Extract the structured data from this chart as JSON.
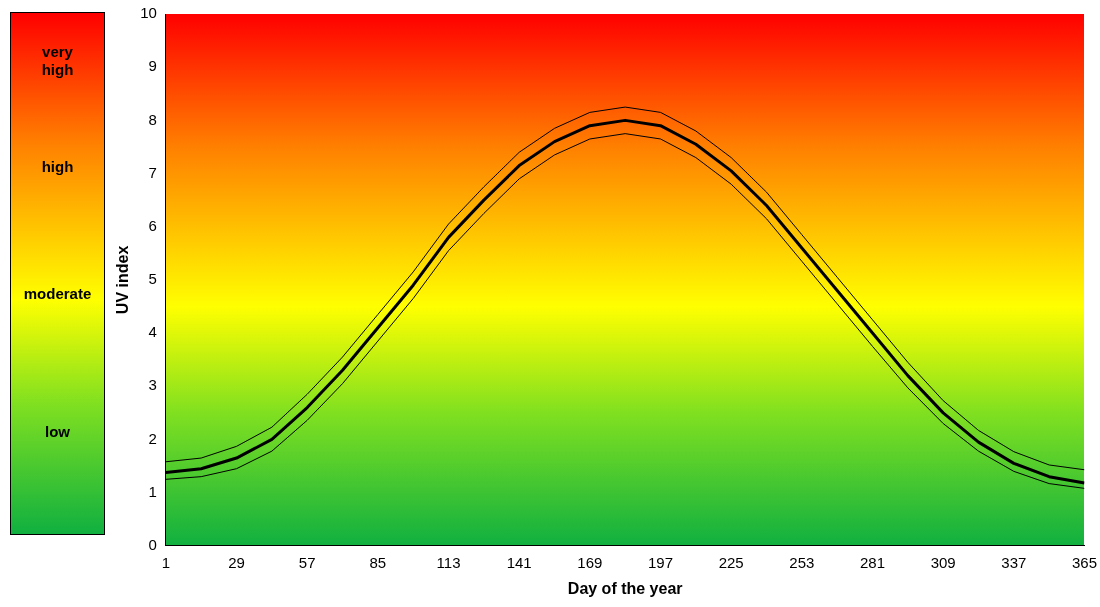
{
  "chart_data": {
    "type": "line",
    "xlabel": "Day of the year",
    "ylabel": "UV index",
    "annotations": [
      "very\nhigh",
      "high",
      "moderate",
      "low"
    ],
    "x": [
      1,
      15,
      29,
      43,
      57,
      71,
      85,
      99,
      113,
      127,
      141,
      155,
      169,
      183,
      197,
      211,
      225,
      239,
      253,
      267,
      281,
      295,
      309,
      323,
      337,
      351,
      365
    ],
    "xlim": [
      1,
      365
    ],
    "xticks": [
      1,
      29,
      57,
      85,
      113,
      141,
      169,
      197,
      225,
      253,
      281,
      309,
      337,
      365
    ],
    "ylim": [
      0,
      10
    ],
    "yticks": [
      0,
      1,
      2,
      3,
      4,
      5,
      6,
      7,
      8,
      9,
      10
    ],
    "grid": false,
    "legend": false,
    "marker": "none",
    "line_style": "solid",
    "series": [
      {
        "color": "#000000",
        "values": [
          1.38,
          1.45,
          1.65,
          2.0,
          2.6,
          3.3,
          4.1,
          4.9,
          5.8,
          6.5,
          7.15,
          7.6,
          7.9,
          8.0,
          7.9,
          7.55,
          7.05,
          6.4,
          5.6,
          4.8,
          4.0,
          3.2,
          2.5,
          1.95,
          1.55,
          1.3,
          1.18
        ]
      },
      {
        "color": "#000000",
        "values": [
          1.58,
          1.65,
          1.87,
          2.23,
          2.85,
          3.55,
          4.35,
          5.15,
          6.05,
          6.75,
          7.4,
          7.85,
          8.15,
          8.25,
          8.15,
          7.8,
          7.3,
          6.65,
          5.85,
          5.05,
          4.25,
          3.45,
          2.73,
          2.17,
          1.77,
          1.52,
          1.43
        ]
      },
      {
        "color": "#000000",
        "values": [
          1.25,
          1.3,
          1.45,
          1.78,
          2.36,
          3.05,
          3.85,
          4.65,
          5.55,
          6.25,
          6.9,
          7.35,
          7.65,
          7.75,
          7.65,
          7.3,
          6.8,
          6.15,
          5.35,
          4.55,
          3.75,
          2.97,
          2.3,
          1.78,
          1.4,
          1.17,
          1.08
        ]
      }
    ]
  }
}
